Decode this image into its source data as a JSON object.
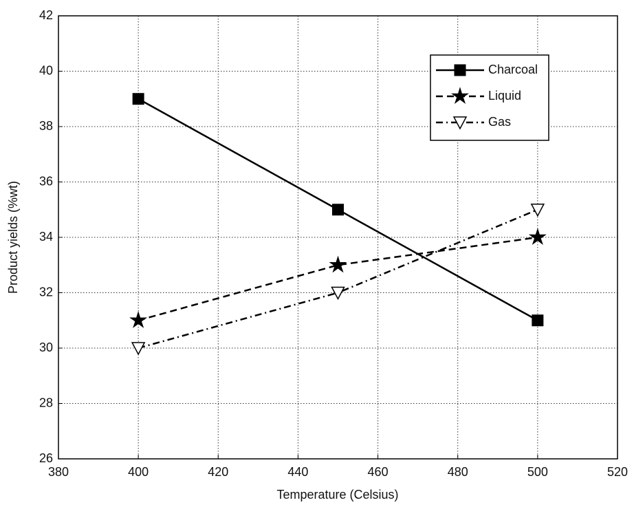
{
  "chart_data": {
    "type": "line",
    "xlabel": "Temperature (Celsius)",
    "ylabel": "Product yields (%wt)",
    "x": [
      400,
      450,
      500
    ],
    "series": [
      {
        "name": "Charcoal",
        "color": "#000000",
        "dash": "solid",
        "marker": "square",
        "values": [
          39,
          35,
          31
        ]
      },
      {
        "name": "Liquid",
        "color": "#000000",
        "dash": "dashed",
        "marker": "star",
        "values": [
          31,
          33,
          34
        ]
      },
      {
        "name": "Gas",
        "color": "#000000",
        "dash": "dashdot",
        "marker": "triangle-down",
        "values": [
          30,
          32,
          35
        ]
      }
    ],
    "xlim": [
      380,
      520
    ],
    "xticks": [
      380,
      400,
      420,
      440,
      460,
      480,
      500,
      520
    ],
    "ylim": [
      26,
      42
    ],
    "yticks": [
      26,
      28,
      30,
      32,
      34,
      36,
      38,
      40,
      42
    ],
    "grid": true,
    "legend": "upper right"
  }
}
